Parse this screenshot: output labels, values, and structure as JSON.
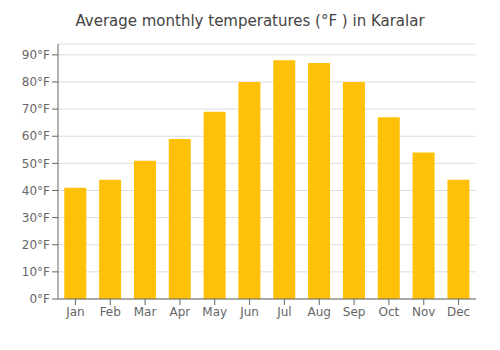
{
  "chart_data": {
    "type": "bar",
    "title": "Average monthly temperatures (°F ) in Karalar",
    "categories": [
      "Jan",
      "Feb",
      "Mar",
      "Apr",
      "May",
      "Jun",
      "Jul",
      "Aug",
      "Sep",
      "Oct",
      "Nov",
      "Dec"
    ],
    "values": [
      41,
      44,
      51,
      59,
      69,
      80,
      88,
      87,
      80,
      67,
      54,
      44
    ],
    "color": "#FFC107",
    "ylim": [
      0,
      94
    ],
    "yticks": [
      {
        "value": 0,
        "label": "0°F"
      },
      {
        "value": 10,
        "label": "10°F"
      },
      {
        "value": 20,
        "label": "20°F"
      },
      {
        "value": 30,
        "label": "30°F"
      },
      {
        "value": 40,
        "label": "40°F"
      },
      {
        "value": 50,
        "label": "50°F"
      },
      {
        "value": 60,
        "label": "60°F"
      },
      {
        "value": 70,
        "label": "70°F"
      },
      {
        "value": 80,
        "label": "80°F"
      },
      {
        "value": 90,
        "label": "90°F"
      }
    ],
    "grid": true
  }
}
